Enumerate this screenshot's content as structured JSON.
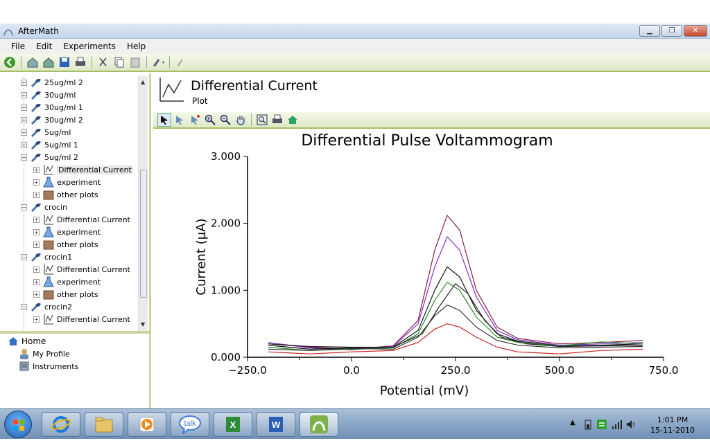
{
  "window": {
    "title": "AfterMath"
  },
  "menu": [
    "File",
    "Edit",
    "Experiments",
    "Help"
  ],
  "tree": [
    {
      "label": "25ug/ml 2",
      "level": 0,
      "icon": "experiment-pipette-icon",
      "exp": "+"
    },
    {
      "label": "30ug/ml",
      "level": 0,
      "icon": "experiment-pipette-icon",
      "exp": "+"
    },
    {
      "label": "30ug/ml 1",
      "level": 0,
      "icon": "experiment-pipette-icon",
      "exp": "+"
    },
    {
      "label": "30ug/ml 2",
      "level": 0,
      "icon": "experiment-pipette-icon",
      "exp": "+"
    },
    {
      "label": "5ug/ml",
      "level": 0,
      "icon": "experiment-pipette-icon",
      "exp": "+"
    },
    {
      "label": "5ug/ml 1",
      "level": 0,
      "icon": "experiment-pipette-icon",
      "exp": "+"
    },
    {
      "label": "5ug/ml 2",
      "level": 0,
      "icon": "experiment-pipette-icon",
      "exp": "−"
    },
    {
      "label": "Differential Current",
      "level": 1,
      "icon": "plot-chart-icon",
      "exp": "+",
      "selected": true
    },
    {
      "label": "experiment",
      "level": 1,
      "icon": "flask-icon",
      "exp": "+"
    },
    {
      "label": "other plots",
      "level": 1,
      "icon": "folder-icon",
      "exp": "+"
    },
    {
      "label": "crocin",
      "level": 0,
      "icon": "experiment-pipette-icon",
      "exp": "−"
    },
    {
      "label": "Differential Current",
      "level": 1,
      "icon": "plot-chart-icon",
      "exp": "+"
    },
    {
      "label": "experiment",
      "level": 1,
      "icon": "flask-icon",
      "exp": "+"
    },
    {
      "label": "other plots",
      "level": 1,
      "icon": "folder-icon",
      "exp": "+"
    },
    {
      "label": "crocin1",
      "level": 0,
      "icon": "experiment-pipette-icon",
      "exp": "−"
    },
    {
      "label": "Differential Current",
      "level": 1,
      "icon": "plot-chart-icon",
      "exp": "+"
    },
    {
      "label": "experiment",
      "level": 1,
      "icon": "flask-icon",
      "exp": "+"
    },
    {
      "label": "other plots",
      "level": 1,
      "icon": "folder-icon",
      "exp": "+"
    },
    {
      "label": "crocin2",
      "level": 0,
      "icon": "experiment-pipette-icon",
      "exp": "−"
    },
    {
      "label": "Differential Current",
      "level": 1,
      "icon": "plot-chart-icon",
      "exp": "+"
    }
  ],
  "home_tree": {
    "home": "Home",
    "profile": "My Profile",
    "instruments": "Instruments"
  },
  "plot_header": {
    "title": "Differential Current",
    "subtitle": "Plot"
  },
  "chart_data": {
    "type": "line",
    "title": "Differential Pulse Voltammogram",
    "xlabel": "Potential (mV)",
    "ylabel": "Current (µA)",
    "xlim": [
      -250,
      750
    ],
    "ylim": [
      0,
      3
    ],
    "x_ticks": [
      "−250.0",
      "0.0",
      "250.0",
      "500.0",
      "750.0"
    ],
    "y_ticks": [
      "0.000",
      "1.000",
      "2.000",
      "3.000"
    ],
    "grid": false,
    "series": [
      {
        "color": "#8b1a4a",
        "x": [
          -200,
          -100,
          0,
          100,
          160,
          200,
          230,
          260,
          300,
          350,
          400,
          500,
          600,
          700
        ],
        "y": [
          0.2,
          0.15,
          0.12,
          0.17,
          0.55,
          1.6,
          2.12,
          1.9,
          1.0,
          0.45,
          0.28,
          0.2,
          0.22,
          0.25
        ]
      },
      {
        "color": "#7b2fc8",
        "x": [
          -200,
          -100,
          0,
          100,
          160,
          200,
          230,
          260,
          300,
          350,
          400,
          500,
          600,
          700
        ],
        "y": [
          0.22,
          0.14,
          0.11,
          0.16,
          0.5,
          1.35,
          1.8,
          1.6,
          0.9,
          0.4,
          0.26,
          0.18,
          0.2,
          0.22
        ]
      },
      {
        "color": "#111111",
        "x": [
          -200,
          -100,
          0,
          100,
          160,
          200,
          230,
          260,
          300,
          350,
          400,
          500,
          600,
          700
        ],
        "y": [
          0.18,
          0.12,
          0.14,
          0.15,
          0.4,
          1.0,
          1.35,
          1.2,
          0.7,
          0.35,
          0.24,
          0.17,
          0.18,
          0.2
        ]
      },
      {
        "color": "#2a8a2a",
        "x": [
          -200,
          -100,
          0,
          100,
          160,
          200,
          230,
          260,
          300,
          350,
          400,
          500,
          600,
          700
        ],
        "y": [
          0.15,
          0.1,
          0.12,
          0.14,
          0.35,
          0.85,
          1.12,
          1.0,
          0.6,
          0.3,
          0.22,
          0.17,
          0.23,
          0.2
        ]
      },
      {
        "color": "#222222",
        "x": [
          -200,
          -100,
          0,
          100,
          170,
          210,
          250,
          280,
          320,
          360,
          420,
          500,
          600,
          700
        ],
        "y": [
          0.2,
          0.16,
          0.15,
          0.15,
          0.35,
          0.75,
          1.1,
          0.95,
          0.55,
          0.3,
          0.2,
          0.16,
          0.17,
          0.18
        ]
      },
      {
        "color": "#333333",
        "x": [
          -200,
          -100,
          0,
          100,
          160,
          200,
          230,
          260,
          300,
          350,
          400,
          500,
          600,
          700
        ],
        "y": [
          0.12,
          0.1,
          0.13,
          0.12,
          0.3,
          0.62,
          0.78,
          0.7,
          0.45,
          0.25,
          0.18,
          0.14,
          0.15,
          0.16
        ]
      },
      {
        "color": "#cc2222",
        "x": [
          -200,
          -100,
          0,
          100,
          160,
          200,
          230,
          260,
          300,
          350,
          400,
          500,
          600,
          700
        ],
        "y": [
          0.08,
          0.05,
          0.08,
          0.1,
          0.22,
          0.42,
          0.5,
          0.45,
          0.3,
          0.15,
          0.08,
          0.05,
          0.1,
          0.12
        ]
      }
    ]
  },
  "taskbar": {
    "time": "1:01 PM",
    "date": "15-11-2010"
  }
}
